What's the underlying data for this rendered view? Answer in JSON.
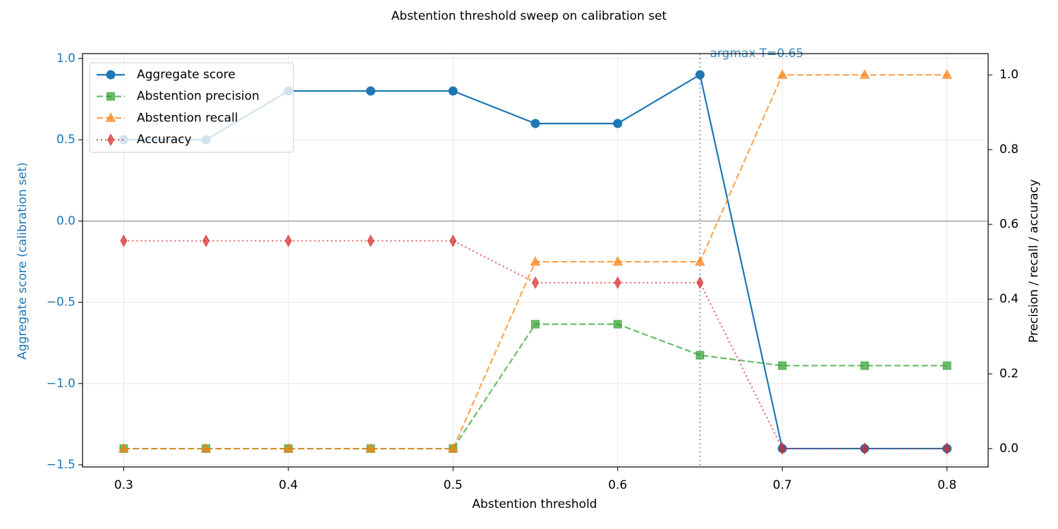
{
  "chart_data": {
    "type": "line",
    "title": "Abstention threshold sweep on calibration set",
    "xlabel": "Abstention threshold",
    "ylabel": "Aggregate score (calibration set)",
    "y2label": "Precision / recall / accuracy",
    "x": [
      0.3,
      0.35,
      0.4,
      0.45,
      0.5,
      0.55,
      0.6,
      0.65,
      0.7,
      0.75,
      0.8
    ],
    "series": [
      {
        "name": "Aggregate score",
        "color": "#1f77b4",
        "marker": "circle",
        "linestyle": "solid",
        "axis": "y",
        "values": [
          0.5,
          0.5,
          0.8,
          0.8,
          0.8,
          0.6,
          0.6,
          0.9,
          -1.4,
          -1.4,
          -1.4
        ]
      },
      {
        "name": "Abstention precision",
        "color": "#2ca02c",
        "marker": "square",
        "linestyle": "dashed",
        "axis": "y2",
        "values": [
          0,
          0,
          0,
          0,
          0,
          0.333,
          0.333,
          0.25,
          0.222,
          0.222,
          0.222
        ]
      },
      {
        "name": "Abstention recall",
        "color": "#ff7f0e",
        "marker": "triangle",
        "linestyle": "dashed",
        "axis": "y2",
        "values": [
          0,
          0,
          0,
          0,
          0,
          0.5,
          0.5,
          0.5,
          1,
          1,
          1
        ]
      },
      {
        "name": "Accuracy",
        "color": "#d62728",
        "marker": "diamond",
        "linestyle": "dotted",
        "axis": "y2",
        "values": [
          0.556,
          0.556,
          0.556,
          0.556,
          0.556,
          0.444,
          0.444,
          0.444,
          0,
          0,
          0
        ]
      }
    ],
    "xlim": [
      0.275,
      0.825
    ],
    "xticks": [
      0.3,
      0.4,
      0.5,
      0.6,
      0.7,
      0.8
    ],
    "ylim": [
      -1.513,
      1.03
    ],
    "yticks": [
      {
        "value": -1.5,
        "label": "−1.5"
      },
      {
        "value": -1.0,
        "label": "−1.0"
      },
      {
        "value": -0.5,
        "label": "−0.5"
      },
      {
        "value": 0,
        "label": "0.0"
      },
      0.5,
      {
        "value": 1.0,
        "label": "1.0"
      }
    ],
    "y2lim": [
      -0.049,
      1.057
    ],
    "y2ticks": [
      {
        "value": 0,
        "label": "0.0"
      },
      0.2,
      0.4,
      0.6,
      0.8,
      {
        "value": 1.0,
        "label": "1.0"
      }
    ],
    "zero_line": 0,
    "vline": {
      "x": 0.65,
      "label": "argmax T=0.65"
    },
    "grid": true,
    "legend": "upper left"
  }
}
